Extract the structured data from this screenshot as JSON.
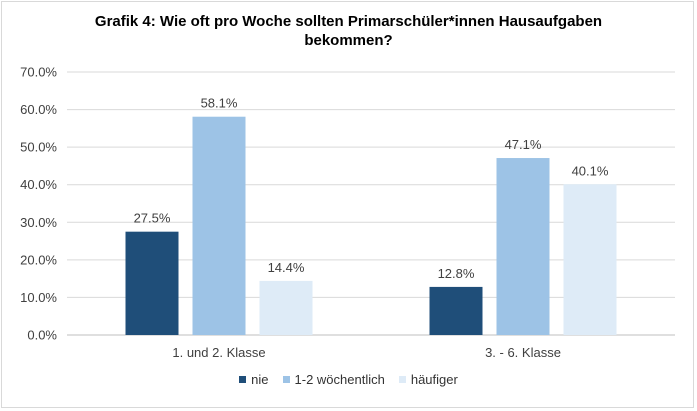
{
  "chart_data": {
    "type": "bar",
    "title_lines": [
      "Grafik 4: Wie oft pro Woche sollten Primarschüler*innen Hausaufgaben",
      "bekommen?"
    ],
    "categories": [
      "1. und 2. Klasse",
      "3. - 6. Klasse"
    ],
    "series": [
      {
        "name": "nie",
        "values": [
          27.5,
          12.8
        ],
        "labels": [
          "27.5%",
          "12.8%"
        ],
        "color": "#1f4e79"
      },
      {
        "name": "1-2 wöchentlich",
        "values": [
          58.1,
          47.1
        ],
        "labels": [
          "58.1%",
          "47.1%"
        ],
        "color": "#9dc3e6"
      },
      {
        "name": "häufiger",
        "values": [
          14.4,
          40.1
        ],
        "labels": [
          "14.4%",
          "40.1%"
        ],
        "color": "#deebf7"
      }
    ],
    "ylim": [
      0,
      70
    ],
    "yticks": [
      {
        "value": 0,
        "label": "0.0%"
      },
      {
        "value": 10,
        "label": "10.0%"
      },
      {
        "value": 20,
        "label": "20.0%"
      },
      {
        "value": 30,
        "label": "30.0%"
      },
      {
        "value": 40,
        "label": "40.0%"
      },
      {
        "value": 50,
        "label": "50.0%"
      },
      {
        "value": 60,
        "label": "60.0%"
      },
      {
        "value": 70,
        "label": "70.0%"
      }
    ],
    "grid": true,
    "legend_position": "bottom",
    "colors": {
      "gridline": "#d9d9d9",
      "axis": "#bfbfbf",
      "text": "#404040"
    }
  }
}
